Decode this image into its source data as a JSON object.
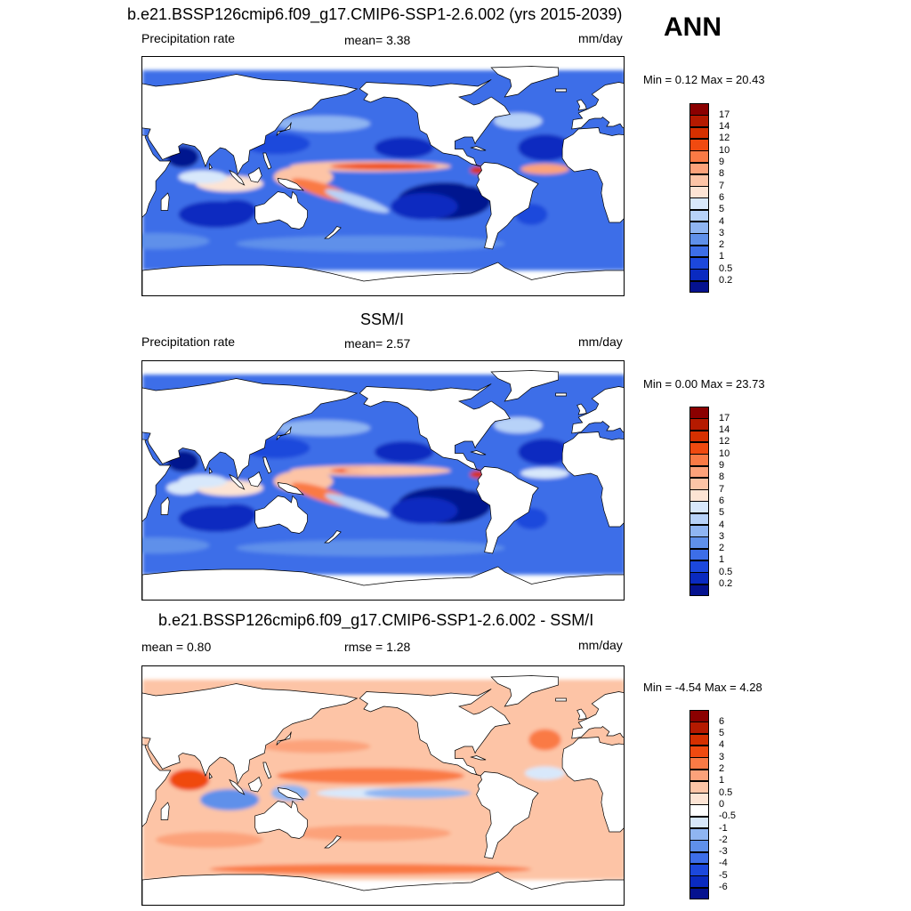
{
  "panels": [
    {
      "title": "b.e21.BSSP126cmip6.f09_g17.CMIP6-SSP1-2.6.002 (yrs 2015-2039)",
      "left": "Precipitation rate",
      "mid": "mean=   3.38",
      "right": "mm/day",
      "minmax": "Min =   0.12 Max =  20.43",
      "levels": [
        "17",
        "14",
        "12",
        "10",
        "9",
        "8",
        "7",
        "6",
        "5",
        "4",
        "3",
        "2",
        "1",
        "0.5",
        "0.2"
      ],
      "colors": [
        "#8b0000",
        "#b51a00",
        "#d63000",
        "#f04a10",
        "#fa7a45",
        "#fca27a",
        "#fdc4a6",
        "#fde4d4",
        "#d8e8fb",
        "#b7d2f8",
        "#8fb5f2",
        "#5f90ea",
        "#3d6ee8",
        "#1c48dc",
        "#0a2ac0",
        "#05128f"
      ],
      "fieldType": "model"
    },
    {
      "title": "SSM/I",
      "left": "Precipitation rate",
      "mid": "mean=   2.57",
      "right": "mm/day",
      "minmax": "Min =   0.00 Max =  23.73",
      "levels": [
        "17",
        "14",
        "12",
        "10",
        "9",
        "8",
        "7",
        "6",
        "5",
        "4",
        "3",
        "2",
        "1",
        "0.5",
        "0.2"
      ],
      "colors": [
        "#8b0000",
        "#b51a00",
        "#d63000",
        "#f04a10",
        "#fa7a45",
        "#fca27a",
        "#fdc4a6",
        "#fde4d4",
        "#d8e8fb",
        "#b7d2f8",
        "#8fb5f2",
        "#5f90ea",
        "#3d6ee8",
        "#1c48dc",
        "#0a2ac0",
        "#05128f"
      ],
      "fieldType": "obs"
    },
    {
      "title": "b.e21.BSSP126cmip6.f09_g17.CMIP6-SSP1-2.6.002 - SSM/I",
      "left": "mean =   0.80",
      "mid": "rmse =   1.28",
      "right": "mm/day",
      "minmax": "Min =  -4.54 Max =   4.28",
      "levels": [
        "6",
        "5",
        "4",
        "3",
        "2",
        "1",
        "0.5",
        "0",
        "-0.5",
        "-1",
        "-2",
        "-3",
        "-4",
        "-5",
        "-6"
      ],
      "colors": [
        "#8b0000",
        "#b51a00",
        "#d63000",
        "#f04a10",
        "#fa7a45",
        "#fca27a",
        "#fdc4a6",
        "#fde4d4",
        "#ffffff",
        "#d8e8fb",
        "#8fb5f2",
        "#5f90ea",
        "#3d6ee8",
        "#1c48dc",
        "#0a2ac0",
        "#05128f"
      ],
      "fieldType": "diff"
    }
  ],
  "season": "ANN"
}
